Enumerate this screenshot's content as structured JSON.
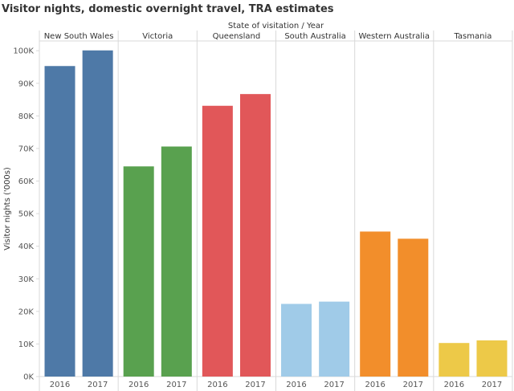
{
  "title": "Visitor nights, domestic overnight travel, TRA estimates",
  "chart_data": {
    "type": "bar",
    "title": "Visitor nights, domestic overnight travel, TRA estimates",
    "header_label": "State of visitation / Year",
    "ylabel": "Visitor nights ('000s)",
    "xlabel": "",
    "ylim": [
      0,
      103000
    ],
    "yticks": [
      0,
      10000,
      20000,
      30000,
      40000,
      50000,
      60000,
      70000,
      80000,
      90000,
      100000
    ],
    "ytick_labels": [
      "0K",
      "10K",
      "20K",
      "30K",
      "40K",
      "50K",
      "60K",
      "70K",
      "80K",
      "90K",
      "100K"
    ],
    "grid": false,
    "years": [
      "2016",
      "2017"
    ],
    "groups": [
      {
        "name": "New South Wales",
        "color": "#4e79a7",
        "values": [
          95300,
          100100
        ]
      },
      {
        "name": "Victoria",
        "color": "#59a14f",
        "values": [
          64500,
          70600
        ]
      },
      {
        "name": "Queensland",
        "color": "#e15759",
        "values": [
          83100,
          86700
        ]
      },
      {
        "name": "South Australia",
        "color": "#a0cbe8",
        "values": [
          22300,
          23000
        ]
      },
      {
        "name": "Western Australia",
        "color": "#f28e2b",
        "values": [
          44500,
          42300
        ]
      },
      {
        "name": "Tasmania",
        "color": "#edc948",
        "values": [
          10300,
          11100
        ]
      }
    ]
  }
}
